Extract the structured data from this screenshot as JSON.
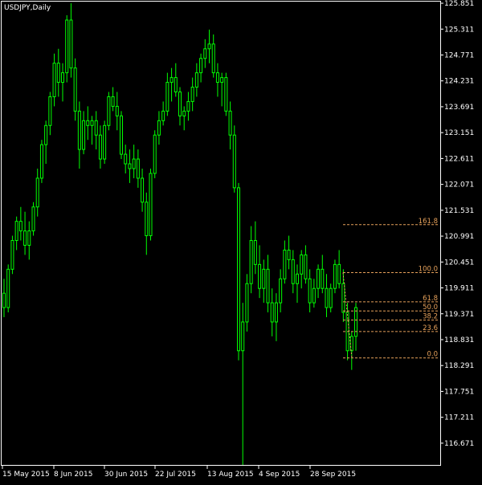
{
  "window": {
    "title": "USDJPY,Daily"
  },
  "colors": {
    "background": "#000000",
    "candle": "#00ff00",
    "axis": "#ffffff",
    "fibonacci": "#e6a15a"
  },
  "chart_data": {
    "type": "candlestick",
    "symbol": "USDJPY",
    "timeframe": "Daily",
    "ylim": [
      116.2,
      125.885
    ],
    "y_ticks": [
      "125.851",
      "125.311",
      "124.771",
      "124.231",
      "123.691",
      "123.151",
      "122.611",
      "122.071",
      "121.531",
      "120.991",
      "120.451",
      "119.911",
      "119.371",
      "118.831",
      "118.291",
      "117.751",
      "117.211",
      "116.671"
    ],
    "x_ticks": [
      "15 May 2015",
      "8 Jun 2015",
      "30 Jun 2015",
      "22 Jul 2015",
      "13 Aug 2015",
      "4 Sep 2015",
      "28 Sep 2015"
    ],
    "bars": [
      [
        119.8,
        120.1,
        119.3,
        119.5
      ],
      [
        119.5,
        120.4,
        119.4,
        120.3
      ],
      [
        120.3,
        121.0,
        120.2,
        120.9
      ],
      [
        120.9,
        121.4,
        120.7,
        121.3
      ],
      [
        121.3,
        121.6,
        120.9,
        121.1
      ],
      [
        121.1,
        121.5,
        120.6,
        120.8
      ],
      [
        120.8,
        121.3,
        120.5,
        121.1
      ],
      [
        121.1,
        121.7,
        121.0,
        121.6
      ],
      [
        121.6,
        122.4,
        121.4,
        122.2
      ],
      [
        122.2,
        123.0,
        122.1,
        122.9
      ],
      [
        122.9,
        123.4,
        122.5,
        123.3
      ],
      [
        123.3,
        124.0,
        123.1,
        123.9
      ],
      [
        123.9,
        124.8,
        123.7,
        124.6
      ],
      [
        124.6,
        124.9,
        123.9,
        124.2
      ],
      [
        124.2,
        124.6,
        123.8,
        124.4
      ],
      [
        124.4,
        125.6,
        124.2,
        125.5
      ],
      [
        125.5,
        125.85,
        124.3,
        124.5
      ],
      [
        124.5,
        124.7,
        123.4,
        123.6
      ],
      [
        123.6,
        123.8,
        122.4,
        122.8
      ],
      [
        122.8,
        123.6,
        122.7,
        123.4
      ],
      [
        123.4,
        123.7,
        123.0,
        123.3
      ],
      [
        123.3,
        123.5,
        122.9,
        123.4
      ],
      [
        123.4,
        123.6,
        122.8,
        123.1
      ],
      [
        123.1,
        123.3,
        122.4,
        122.6
      ],
      [
        122.6,
        123.4,
        122.5,
        123.3
      ],
      [
        123.3,
        124.0,
        123.2,
        123.9
      ],
      [
        123.9,
        124.1,
        123.6,
        123.7
      ],
      [
        123.7,
        124.0,
        123.2,
        123.5
      ],
      [
        123.5,
        123.6,
        122.6,
        122.7
      ],
      [
        122.7,
        122.9,
        122.3,
        122.5
      ],
      [
        122.5,
        122.8,
        122.1,
        122.4
      ],
      [
        122.4,
        122.9,
        122.2,
        122.6
      ],
      [
        122.6,
        122.8,
        122.0,
        122.2
      ],
      [
        122.2,
        122.4,
        121.5,
        121.7
      ],
      [
        121.7,
        121.9,
        120.6,
        121.0
      ],
      [
        121.0,
        122.4,
        120.9,
        122.3
      ],
      [
        122.3,
        123.2,
        122.2,
        123.1
      ],
      [
        123.1,
        123.6,
        122.9,
        123.4
      ],
      [
        123.4,
        123.8,
        123.3,
        123.6
      ],
      [
        123.6,
        124.4,
        123.5,
        124.2
      ],
      [
        124.2,
        124.5,
        123.8,
        124.3
      ],
      [
        124.3,
        124.6,
        123.9,
        124.0
      ],
      [
        124.0,
        124.1,
        123.3,
        123.5
      ],
      [
        123.5,
        123.7,
        123.2,
        123.6
      ],
      [
        123.6,
        124.0,
        123.4,
        123.8
      ],
      [
        123.8,
        124.3,
        123.6,
        124.1
      ],
      [
        124.1,
        124.6,
        123.9,
        124.4
      ],
      [
        124.4,
        124.8,
        124.2,
        124.7
      ],
      [
        124.7,
        125.1,
        124.5,
        124.9
      ],
      [
        124.9,
        125.3,
        124.6,
        125.0
      ],
      [
        125.0,
        125.2,
        124.3,
        124.4
      ],
      [
        124.4,
        124.6,
        123.9,
        124.2
      ],
      [
        124.2,
        124.4,
        123.7,
        124.3
      ],
      [
        124.3,
        124.4,
        123.5,
        123.6
      ],
      [
        123.6,
        123.8,
        122.8,
        123.1
      ],
      [
        123.1,
        123.3,
        121.9,
        122.0
      ],
      [
        122.0,
        122.1,
        118.4,
        118.6
      ],
      [
        118.6,
        119.6,
        116.2,
        119.2
      ],
      [
        119.2,
        120.2,
        119.0,
        120.0
      ],
      [
        120.0,
        121.2,
        119.8,
        120.9
      ],
      [
        120.9,
        121.3,
        120.2,
        120.4
      ],
      [
        120.4,
        120.8,
        119.7,
        119.9
      ],
      [
        119.9,
        120.5,
        119.6,
        120.3
      ],
      [
        120.3,
        120.6,
        119.4,
        119.6
      ],
      [
        119.6,
        119.9,
        118.9,
        119.2
      ],
      [
        119.2,
        119.8,
        118.8,
        119.6
      ],
      [
        119.6,
        120.3,
        119.4,
        120.1
      ],
      [
        120.1,
        120.9,
        120.0,
        120.7
      ],
      [
        120.7,
        121.0,
        120.3,
        120.5
      ],
      [
        120.5,
        120.7,
        119.8,
        120.0
      ],
      [
        120.0,
        120.4,
        119.6,
        120.2
      ],
      [
        120.2,
        120.7,
        119.9,
        120.6
      ],
      [
        120.6,
        120.8,
        120.0,
        120.1
      ],
      [
        120.1,
        120.3,
        119.4,
        119.6
      ],
      [
        119.6,
        120.1,
        119.5,
        119.9
      ],
      [
        119.9,
        120.4,
        119.7,
        120.3
      ],
      [
        120.3,
        120.6,
        119.8,
        119.9
      ],
      [
        119.9,
        120.2,
        119.3,
        119.5
      ],
      [
        119.5,
        120.0,
        119.4,
        119.9
      ],
      [
        119.9,
        120.5,
        119.8,
        120.4
      ],
      [
        120.4,
        120.7,
        119.9,
        120.0
      ],
      [
        120.0,
        120.3,
        119.2,
        119.4
      ],
      [
        119.4,
        119.6,
        118.4,
        118.6
      ],
      [
        118.6,
        119.0,
        118.2,
        118.9
      ],
      [
        118.9,
        119.6,
        118.6,
        119.5
      ]
    ],
    "fibonacci": {
      "levels": [
        "161.8",
        "100.0",
        "61.8",
        "50.0",
        "38.2",
        "23.6",
        "0.0"
      ],
      "prices": [
        121.23,
        120.23,
        119.62,
        119.43,
        119.24,
        119.0,
        118.45
      ]
    }
  }
}
